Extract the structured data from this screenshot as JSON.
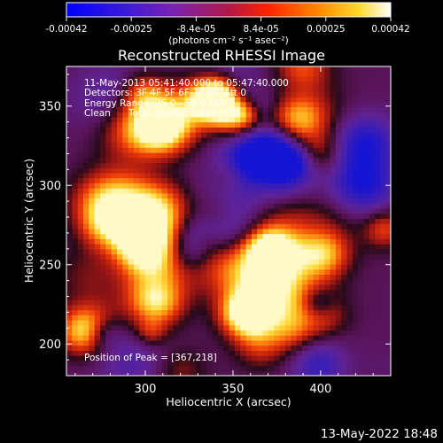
{
  "chart_data": {
    "type": "heatmap",
    "title": "Reconstructed RHESSI Image",
    "xlabel": "Heliocentric X (arcsec)",
    "ylabel": "Heliocentric Y (arcsec)",
    "xlim": [
      255,
      440
    ],
    "ylim": [
      180,
      375
    ],
    "x_ticks": [
      300,
      350,
      400
    ],
    "y_ticks": [
      200,
      250,
      300,
      350
    ],
    "colorbar": {
      "colormap": "blue-purple-red-orange-yellow-white",
      "min": -0.00042,
      "max": 0.00042,
      "ticks": [
        "-0.00042",
        "-0.00025",
        "-8.4e-05",
        "8.4e-05",
        "0.00025",
        "0.00042"
      ],
      "unit_label": "(photons cm⁻² s⁻¹ asec⁻²)"
    },
    "grid": false,
    "annotations": {
      "time_range": "11-May-2013 05:41:40.000 to 05:47:40.000",
      "detectors": "Detectors: 3F 4F 5F 6F 7F 8F, Att 0",
      "energy_range": "Energy Range: 25.0 - 50.0 keV",
      "method": "Clean",
      "total_counts": "Total counts: 8.90E+03",
      "peak_position": "Position of Peak = [367,218]"
    },
    "image_highlights": [
      {
        "x": 340,
        "y": 355,
        "level": "peak-high"
      },
      {
        "x": 357,
        "y": 218,
        "level": "peak-high"
      },
      {
        "x": 265,
        "y": 207,
        "level": "high"
      },
      {
        "x": 295,
        "y": 260,
        "level": "medium"
      },
      {
        "x": 305,
        "y": 225,
        "level": "medium"
      },
      {
        "x": 400,
        "y": 255,
        "level": "medium"
      }
    ]
  },
  "footer": {
    "date_stamp": "13-May-2022 18:48"
  }
}
